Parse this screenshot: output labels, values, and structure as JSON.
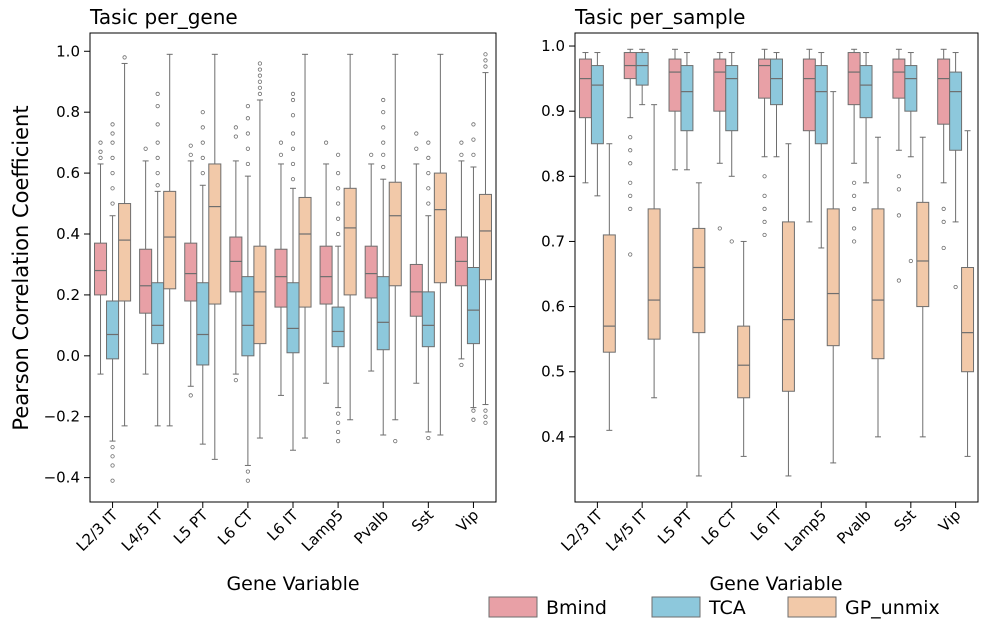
{
  "chart_data": [
    {
      "type": "box",
      "title": "Tasic per_gene",
      "xlabel": "Gene Variable",
      "ylabel": "Pearson Correlation Coefficient",
      "ylim": [
        -0.48,
        1.06
      ],
      "yticks": [
        -0.4,
        -0.2,
        0.0,
        0.2,
        0.4,
        0.6,
        0.8,
        1.0
      ],
      "ytick_labels": [
        "−0.4",
        "−0.2",
        "0.0",
        "0.2",
        "0.4",
        "0.6",
        "0.8",
        "1.0"
      ],
      "categories": [
        "L2/3 IT",
        "L4/5 IT",
        "L5 PT",
        "L6 CT",
        "L6 IT",
        "Lamp5",
        "Pvalb",
        "Sst",
        "Vip"
      ],
      "series": [
        {
          "name": "Bmind",
          "boxes": [
            {
              "wlo": -0.06,
              "q1": 0.2,
              "med": 0.28,
              "q3": 0.37,
              "whi": 0.63,
              "outliers": [
                0.65,
                0.67,
                0.7
              ]
            },
            {
              "wlo": -0.06,
              "q1": 0.14,
              "med": 0.23,
              "q3": 0.35,
              "whi": 0.64,
              "outliers": [
                0.68
              ]
            },
            {
              "wlo": -0.1,
              "q1": 0.18,
              "med": 0.27,
              "q3": 0.37,
              "whi": 0.64,
              "outliers": [
                0.66,
                0.69,
                -0.13
              ]
            },
            {
              "wlo": -0.06,
              "q1": 0.21,
              "med": 0.31,
              "q3": 0.39,
              "whi": 0.64,
              "outliers": [
                0.72,
                0.75,
                -0.08
              ]
            },
            {
              "wlo": -0.13,
              "q1": 0.16,
              "med": 0.26,
              "q3": 0.35,
              "whi": 0.63,
              "outliers": [
                0.66,
                0.7
              ]
            },
            {
              "wlo": -0.09,
              "q1": 0.17,
              "med": 0.26,
              "q3": 0.36,
              "whi": 0.63,
              "outliers": [
                0.7
              ]
            },
            {
              "wlo": -0.05,
              "q1": 0.19,
              "med": 0.27,
              "q3": 0.36,
              "whi": 0.63,
              "outliers": [
                0.66
              ]
            },
            {
              "wlo": -0.09,
              "q1": 0.13,
              "med": 0.21,
              "q3": 0.3,
              "whi": 0.63,
              "outliers": [
                0.68,
                0.73
              ]
            },
            {
              "wlo": -0.01,
              "q1": 0.23,
              "med": 0.31,
              "q3": 0.39,
              "whi": 0.64,
              "outliers": [
                0.66,
                0.7,
                -0.03
              ]
            }
          ]
        },
        {
          "name": "TCA",
          "boxes": [
            {
              "wlo": -0.28,
              "q1": -0.01,
              "med": 0.07,
              "q3": 0.18,
              "whi": 0.46,
              "outliers": [
                0.5,
                0.55,
                0.6,
                0.65,
                0.7,
                0.73,
                0.76,
                -0.3,
                -0.33,
                -0.36,
                -0.41
              ]
            },
            {
              "wlo": -0.23,
              "q1": 0.04,
              "med": 0.1,
              "q3": 0.24,
              "whi": 0.54,
              "outliers": [
                0.56,
                0.6,
                0.65,
                0.7,
                0.76,
                0.82,
                0.86
              ]
            },
            {
              "wlo": -0.29,
              "q1": -0.03,
              "med": 0.07,
              "q3": 0.24,
              "whi": 0.56,
              "outliers": [
                0.6,
                0.65,
                0.7,
                0.75,
                0.8
              ]
            },
            {
              "wlo": -0.36,
              "q1": 0.0,
              "med": 0.1,
              "q3": 0.26,
              "whi": 0.59,
              "outliers": [
                0.63,
                0.68,
                0.73,
                0.78,
                0.82,
                -0.38,
                -0.41
              ]
            },
            {
              "wlo": -0.31,
              "q1": 0.01,
              "med": 0.09,
              "q3": 0.24,
              "whi": 0.55,
              "outliers": [
                0.58,
                0.63,
                0.68,
                0.73,
                0.79,
                0.84,
                0.86
              ]
            },
            {
              "wlo": -0.17,
              "q1": 0.03,
              "med": 0.08,
              "q3": 0.16,
              "whi": 0.36,
              "outliers": [
                0.4,
                0.45,
                0.5,
                0.55,
                0.6,
                0.66,
                -0.19,
                -0.22,
                -0.25,
                -0.28
              ]
            },
            {
              "wlo": -0.26,
              "q1": 0.02,
              "med": 0.11,
              "q3": 0.26,
              "whi": 0.58,
              "outliers": [
                0.62,
                0.66,
                0.7,
                0.75,
                0.8,
                0.84
              ]
            },
            {
              "wlo": -0.25,
              "q1": 0.03,
              "med": 0.1,
              "q3": 0.21,
              "whi": 0.46,
              "outliers": [
                0.5,
                0.55,
                0.6,
                0.65,
                0.7,
                -0.27
              ]
            },
            {
              "wlo": -0.17,
              "q1": 0.04,
              "med": 0.15,
              "q3": 0.29,
              "whi": 0.62,
              "outliers": [
                0.66,
                0.71,
                0.76,
                -0.18,
                -0.21
              ]
            }
          ]
        },
        {
          "name": "GP_unmix",
          "boxes": [
            {
              "wlo": -0.23,
              "q1": 0.18,
              "med": 0.38,
              "q3": 0.5,
              "whi": 0.96,
              "outliers": [
                0.98
              ]
            },
            {
              "wlo": -0.23,
              "q1": 0.22,
              "med": 0.39,
              "q3": 0.54,
              "whi": 0.99,
              "outliers": []
            },
            {
              "wlo": -0.34,
              "q1": 0.17,
              "med": 0.49,
              "q3": 0.63,
              "whi": 0.99,
              "outliers": []
            },
            {
              "wlo": -0.27,
              "q1": 0.04,
              "med": 0.21,
              "q3": 0.36,
              "whi": 0.84,
              "outliers": [
                0.86,
                0.88,
                0.9,
                0.92,
                0.94,
                0.96
              ]
            },
            {
              "wlo": -0.27,
              "q1": 0.16,
              "med": 0.4,
              "q3": 0.52,
              "whi": 0.99,
              "outliers": []
            },
            {
              "wlo": -0.21,
              "q1": 0.2,
              "med": 0.42,
              "q3": 0.55,
              "whi": 0.99,
              "outliers": []
            },
            {
              "wlo": -0.21,
              "q1": 0.23,
              "med": 0.46,
              "q3": 0.57,
              "whi": 0.99,
              "outliers": [
                -0.28
              ]
            },
            {
              "wlo": -0.26,
              "q1": 0.24,
              "med": 0.48,
              "q3": 0.6,
              "whi": 0.99,
              "outliers": []
            },
            {
              "wlo": -0.16,
              "q1": 0.25,
              "med": 0.41,
              "q3": 0.53,
              "whi": 0.93,
              "outliers": [
                0.95,
                0.97,
                0.99,
                -0.18,
                -0.2,
                -0.22
              ]
            }
          ]
        }
      ]
    },
    {
      "type": "box",
      "title": "Tasic per_sample",
      "xlabel": "Gene Variable",
      "ylabel": "",
      "ylim": [
        0.3,
        1.02
      ],
      "yticks": [
        0.4,
        0.5,
        0.6,
        0.7,
        0.8,
        0.9,
        1.0
      ],
      "ytick_labels": [
        "0.4",
        "0.5",
        "0.6",
        "0.7",
        "0.8",
        "0.9",
        "1.0"
      ],
      "categories": [
        "L2/3 IT",
        "L4/5 IT",
        "L5 PT",
        "L6 CT",
        "L6 IT",
        "Lamp5",
        "Pvalb",
        "Sst",
        "Vip"
      ],
      "series": [
        {
          "name": "Bmind",
          "boxes": [
            {
              "wlo": 0.79,
              "q1": 0.89,
              "med": 0.95,
              "q3": 0.98,
              "whi": 0.99,
              "outliers": []
            },
            {
              "wlo": 0.89,
              "q1": 0.95,
              "med": 0.97,
              "q3": 0.99,
              "whi": 0.995,
              "outliers": [
                0.86,
                0.84,
                0.82,
                0.79,
                0.77,
                0.75,
                0.68
              ]
            },
            {
              "wlo": 0.81,
              "q1": 0.9,
              "med": 0.96,
              "q3": 0.98,
              "whi": 0.995,
              "outliers": []
            },
            {
              "wlo": 0.82,
              "q1": 0.9,
              "med": 0.96,
              "q3": 0.98,
              "whi": 0.99,
              "outliers": [
                0.72
              ]
            },
            {
              "wlo": 0.83,
              "q1": 0.92,
              "med": 0.97,
              "q3": 0.98,
              "whi": 0.995,
              "outliers": [
                0.8,
                0.77,
                0.75,
                0.73,
                0.71
              ]
            },
            {
              "wlo": 0.73,
              "q1": 0.87,
              "med": 0.95,
              "q3": 0.98,
              "whi": 0.995,
              "outliers": []
            },
            {
              "wlo": 0.82,
              "q1": 0.91,
              "med": 0.96,
              "q3": 0.99,
              "whi": 0.995,
              "outliers": [
                0.79,
                0.77,
                0.75,
                0.72,
                0.7
              ]
            },
            {
              "wlo": 0.84,
              "q1": 0.92,
              "med": 0.96,
              "q3": 0.98,
              "whi": 0.995,
              "outliers": [
                0.8,
                0.78,
                0.74,
                0.64
              ]
            },
            {
              "wlo": 0.79,
              "q1": 0.88,
              "med": 0.95,
              "q3": 0.98,
              "whi": 0.995,
              "outliers": [
                0.75,
                0.73,
                0.69
              ]
            }
          ]
        },
        {
          "name": "TCA",
          "boxes": [
            {
              "wlo": 0.77,
              "q1": 0.85,
              "med": 0.94,
              "q3": 0.97,
              "whi": 0.99,
              "outliers": []
            },
            {
              "wlo": 0.91,
              "q1": 0.94,
              "med": 0.97,
              "q3": 0.99,
              "whi": 0.995,
              "outliers": []
            },
            {
              "wlo": 0.81,
              "q1": 0.87,
              "med": 0.93,
              "q3": 0.97,
              "whi": 0.99,
              "outliers": []
            },
            {
              "wlo": 0.8,
              "q1": 0.87,
              "med": 0.95,
              "q3": 0.97,
              "whi": 0.99,
              "outliers": [
                0.7
              ]
            },
            {
              "wlo": 0.83,
              "q1": 0.91,
              "med": 0.95,
              "q3": 0.98,
              "whi": 0.99,
              "outliers": []
            },
            {
              "wlo": 0.69,
              "q1": 0.85,
              "med": 0.93,
              "q3": 0.97,
              "whi": 0.99,
              "outliers": []
            },
            {
              "wlo": 0.79,
              "q1": 0.89,
              "med": 0.94,
              "q3": 0.97,
              "whi": 0.99,
              "outliers": []
            },
            {
              "wlo": 0.83,
              "q1": 0.9,
              "med": 0.95,
              "q3": 0.97,
              "whi": 0.99,
              "outliers": [
                0.67
              ]
            },
            {
              "wlo": 0.73,
              "q1": 0.84,
              "med": 0.93,
              "q3": 0.96,
              "whi": 0.99,
              "outliers": [
                0.63
              ]
            }
          ]
        },
        {
          "name": "GP_unmix",
          "boxes": [
            {
              "wlo": 0.41,
              "q1": 0.53,
              "med": 0.57,
              "q3": 0.71,
              "whi": 0.85,
              "outliers": []
            },
            {
              "wlo": 0.46,
              "q1": 0.55,
              "med": 0.61,
              "q3": 0.75,
              "whi": 0.91,
              "outliers": []
            },
            {
              "wlo": 0.34,
              "q1": 0.56,
              "med": 0.66,
              "q3": 0.72,
              "whi": 0.79,
              "outliers": []
            },
            {
              "wlo": 0.37,
              "q1": 0.46,
              "med": 0.51,
              "q3": 0.57,
              "whi": 0.7,
              "outliers": []
            },
            {
              "wlo": 0.34,
              "q1": 0.47,
              "med": 0.58,
              "q3": 0.73,
              "whi": 0.85,
              "outliers": []
            },
            {
              "wlo": 0.36,
              "q1": 0.54,
              "med": 0.62,
              "q3": 0.75,
              "whi": 0.93,
              "outliers": []
            },
            {
              "wlo": 0.4,
              "q1": 0.52,
              "med": 0.61,
              "q3": 0.75,
              "whi": 0.86,
              "outliers": []
            },
            {
              "wlo": 0.4,
              "q1": 0.6,
              "med": 0.67,
              "q3": 0.76,
              "whi": 0.86,
              "outliers": []
            },
            {
              "wlo": 0.37,
              "q1": 0.5,
              "med": 0.56,
              "q3": 0.66,
              "whi": 0.87,
              "outliers": []
            }
          ]
        }
      ]
    }
  ],
  "legend": {
    "position": "bottom-right",
    "entries": [
      {
        "label": "Bmind",
        "color": "#e8a0a6"
      },
      {
        "label": "TCA",
        "color": "#8dc8dc"
      },
      {
        "label": "GP_unmix",
        "color": "#f2c9a9"
      }
    ]
  },
  "colors": {
    "Bmind": "#e8a0a6",
    "TCA": "#8dc8dc",
    "GP_unmix": "#f2c9a9",
    "edge": "#6e6e6e"
  }
}
